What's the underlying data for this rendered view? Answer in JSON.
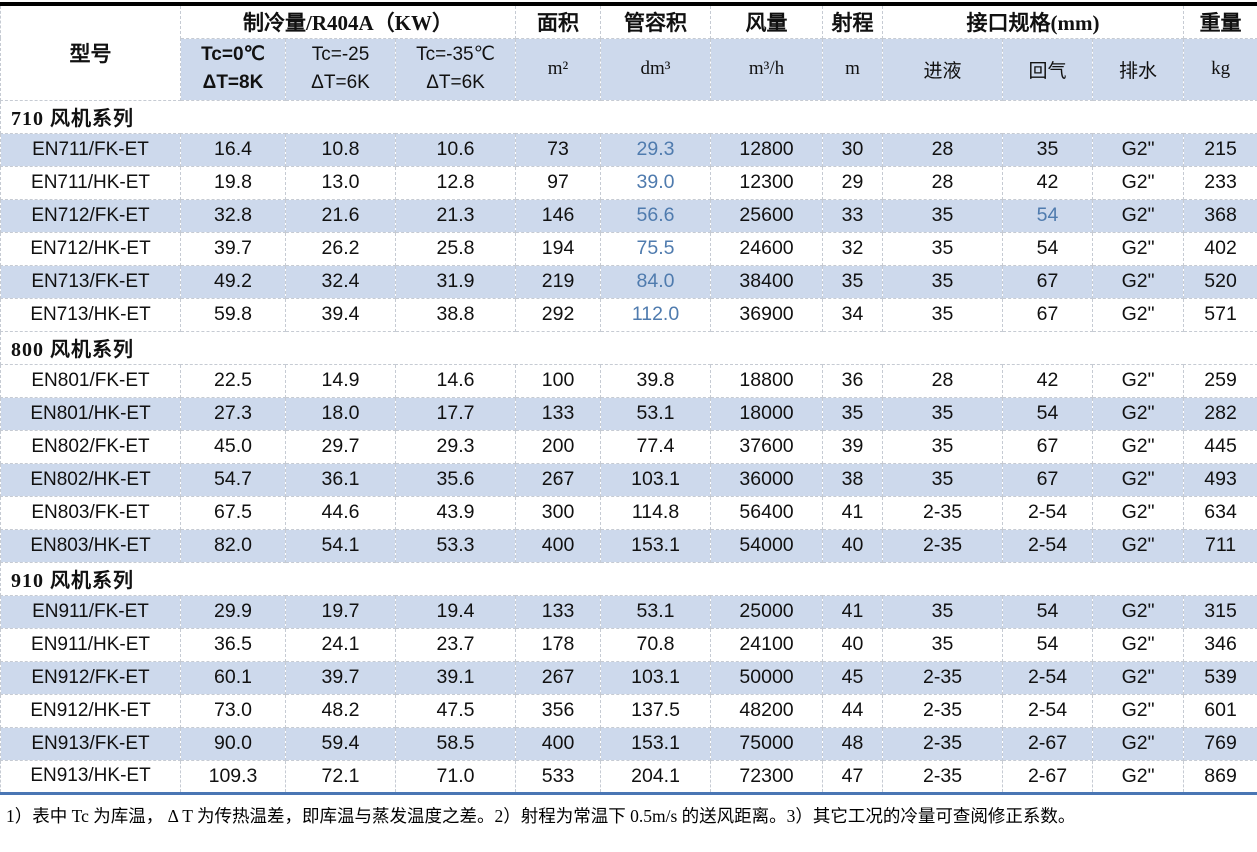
{
  "colors": {
    "band_blue": "#cdd9ec",
    "value_blue": "#4f7bae",
    "top_border": "#000000",
    "bottom_border": "#4a76b4",
    "cool_underline": "#8ba7cc"
  },
  "table": {
    "header": {
      "model": "型号",
      "cooling_group": "制冷量/R404A（KW）",
      "cooling_subcols": [
        {
          "line1": "Tc=0℃",
          "line2": "ΔT=8K"
        },
        {
          "line1": "Tc=-25",
          "line2": "ΔT=6K"
        },
        {
          "line1": "Tc=-35℃",
          "line2": "ΔT=6K"
        }
      ],
      "area_label": "面积",
      "area_unit": "m²",
      "tube_volume_label": "管容积",
      "tube_volume_unit": "dm³",
      "air_flow_label": "风量",
      "air_flow_unit": "m³/h",
      "throw_label": "射程",
      "throw_unit": "m",
      "connections_group": "接口规格(mm)",
      "connections_subcols": [
        "进液",
        "回气",
        "排水"
      ],
      "weight_label": "重量",
      "weight_unit": "kg"
    },
    "column_keys": [
      "model",
      "tc0-capacity",
      "tc25-capacity",
      "tc35-capacity",
      "area",
      "tube-volume",
      "air-flow",
      "throw",
      "liquid-inlet",
      "gas-return",
      "drain",
      "weight"
    ],
    "sections": [
      {
        "title": "710 风机系列",
        "rows": [
          {
            "shaded": true,
            "blue": [
              5
            ],
            "cells": [
              "EN711/FK-ET",
              "16.4",
              "10.8",
              "10.6",
              "73",
              "29.3",
              "12800",
              "30",
              "28",
              "35",
              "G2\"",
              "215"
            ]
          },
          {
            "shaded": false,
            "blue": [
              5
            ],
            "cells": [
              "EN711/HK-ET",
              "19.8",
              "13.0",
              "12.8",
              "97",
              "39.0",
              "12300",
              "29",
              "28",
              "42",
              "G2\"",
              "233"
            ]
          },
          {
            "shaded": true,
            "blue": [
              5,
              9
            ],
            "cells": [
              "EN712/FK-ET",
              "32.8",
              "21.6",
              "21.3",
              "146",
              "56.6",
              "25600",
              "33",
              "35",
              "54",
              "G2\"",
              "368"
            ]
          },
          {
            "shaded": false,
            "blue": [
              5
            ],
            "cells": [
              "EN712/HK-ET",
              "39.7",
              "26.2",
              "25.8",
              "194",
              "75.5",
              "24600",
              "32",
              "35",
              "54",
              "G2\"",
              "402"
            ]
          },
          {
            "shaded": true,
            "blue": [
              5
            ],
            "cells": [
              "EN713/FK-ET",
              "49.2",
              "32.4",
              "31.9",
              "219",
              "84.0",
              "38400",
              "35",
              "35",
              "67",
              "G2\"",
              "520"
            ]
          },
          {
            "shaded": false,
            "blue": [
              5
            ],
            "cells": [
              "EN713/HK-ET",
              "59.8",
              "39.4",
              "38.8",
              "292",
              "112.0",
              "36900",
              "34",
              "35",
              "67",
              "G2\"",
              "571"
            ]
          }
        ]
      },
      {
        "title": "800 风机系列",
        "rows": [
          {
            "shaded": false,
            "blue": [],
            "cells": [
              "EN801/FK-ET",
              "22.5",
              "14.9",
              "14.6",
              "100",
              "39.8",
              "18800",
              "36",
              "28",
              "42",
              "G2\"",
              "259"
            ]
          },
          {
            "shaded": true,
            "blue": [],
            "cells": [
              "EN801/HK-ET",
              "27.3",
              "18.0",
              "17.7",
              "133",
              "53.1",
              "18000",
              "35",
              "35",
              "54",
              "G2\"",
              "282"
            ]
          },
          {
            "shaded": false,
            "blue": [],
            "cells": [
              "EN802/FK-ET",
              "45.0",
              "29.7",
              "29.3",
              "200",
              "77.4",
              "37600",
              "39",
              "35",
              "67",
              "G2\"",
              "445"
            ]
          },
          {
            "shaded": true,
            "blue": [],
            "cells": [
              "EN802/HK-ET",
              "54.7",
              "36.1",
              "35.6",
              "267",
              "103.1",
              "36000",
              "38",
              "35",
              "67",
              "G2\"",
              "493"
            ]
          },
          {
            "shaded": false,
            "blue": [],
            "cells": [
              "EN803/FK-ET",
              "67.5",
              "44.6",
              "43.9",
              "300",
              "114.8",
              "56400",
              "41",
              "2-35",
              "2-54",
              "G2\"",
              "634"
            ]
          },
          {
            "shaded": true,
            "blue": [],
            "cells": [
              "EN803/HK-ET",
              "82.0",
              "54.1",
              "53.3",
              "400",
              "153.1",
              "54000",
              "40",
              "2-35",
              "2-54",
              "G2\"",
              "711"
            ]
          }
        ]
      },
      {
        "title": "910 风机系列",
        "rows": [
          {
            "shaded": true,
            "blue": [],
            "cells": [
              "EN911/FK-ET",
              "29.9",
              "19.7",
              "19.4",
              "133",
              "53.1",
              "25000",
              "41",
              "35",
              "54",
              "G2\"",
              "315"
            ]
          },
          {
            "shaded": false,
            "blue": [],
            "cells": [
              "EN911/HK-ET",
              "36.5",
              "24.1",
              "23.7",
              "178",
              "70.8",
              "24100",
              "40",
              "35",
              "54",
              "G2\"",
              "346"
            ]
          },
          {
            "shaded": true,
            "blue": [],
            "cells": [
              "EN912/FK-ET",
              "60.1",
              "39.7",
              "39.1",
              "267",
              "103.1",
              "50000",
              "45",
              "2-35",
              "2-54",
              "G2\"",
              "539"
            ]
          },
          {
            "shaded": false,
            "blue": [],
            "cells": [
              "EN912/HK-ET",
              "73.0",
              "48.2",
              "47.5",
              "356",
              "137.5",
              "48200",
              "44",
              "2-35",
              "2-54",
              "G2\"",
              "601"
            ]
          },
          {
            "shaded": true,
            "blue": [],
            "cells": [
              "EN913/FK-ET",
              "90.0",
              "59.4",
              "58.5",
              "400",
              "153.1",
              "75000",
              "48",
              "2-35",
              "2-67",
              "G2\"",
              "769"
            ]
          },
          {
            "shaded": false,
            "blue": [],
            "cells": [
              "EN913/HK-ET",
              "109.3",
              "72.1",
              "71.0",
              "533",
              "204.1",
              "72300",
              "47",
              "2-35",
              "2-67",
              "G2\"",
              "869"
            ]
          }
        ]
      }
    ],
    "footnote": "1）表中 Tc 为库温， Δ T 为传热温差，即库温与蒸发温度之差。2）射程为常温下 0.5m/s 的送风距离。3）其它工况的冷量可查阅修正系数。"
  }
}
